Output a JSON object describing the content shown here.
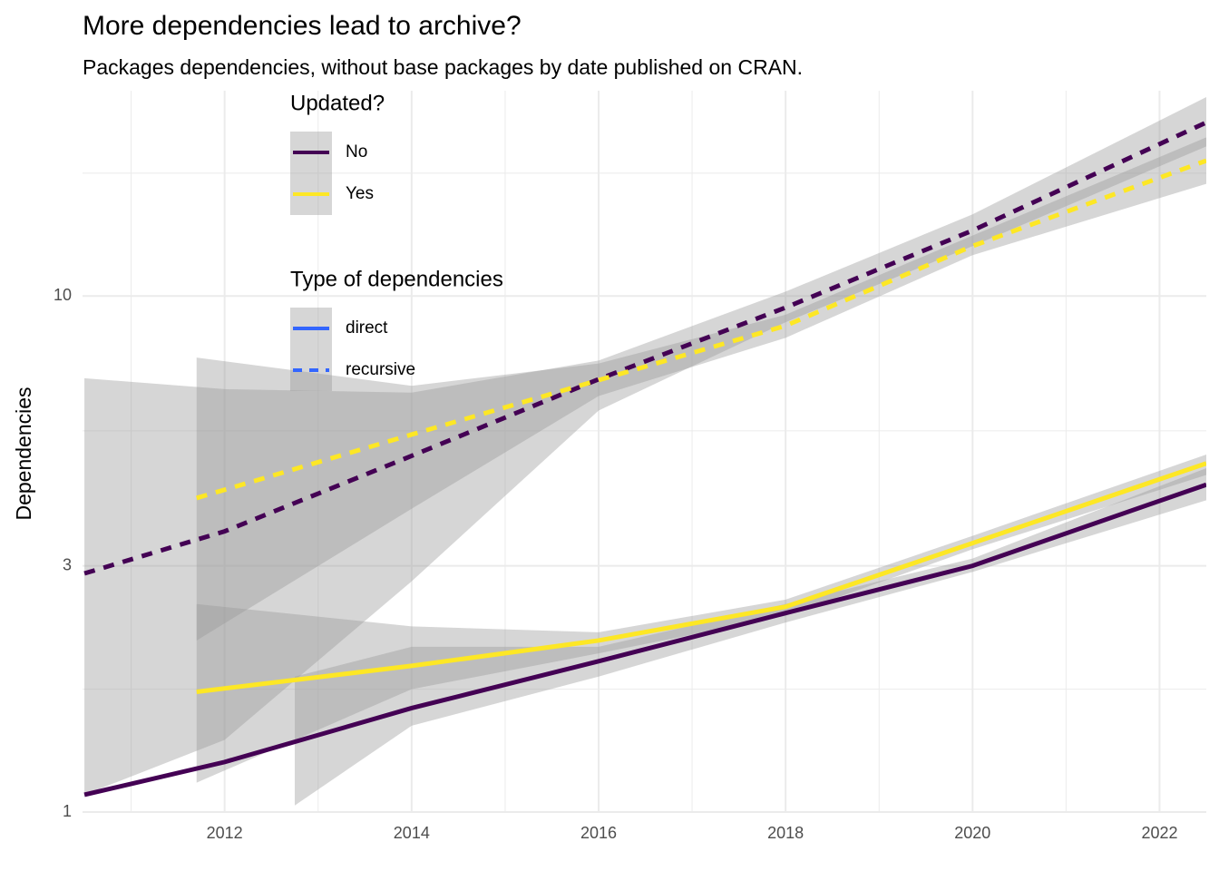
{
  "chart_data": {
    "type": "line",
    "title": "More dependencies lead to archive?",
    "subtitle": "Packages dependencies, without base packages by date published on CRAN.",
    "y_label": "Dependencies",
    "log_y": true,
    "grid": true,
    "xlim": [
      2010.48,
      2022.5
    ],
    "xticks": [
      2012,
      2014,
      2016,
      2018,
      2020,
      2022
    ],
    "x_minor_grid": [
      2011,
      2013,
      2015,
      2017,
      2019,
      2021
    ],
    "ylim": [
      1,
      25
    ],
    "yticks": [
      1,
      3,
      10
    ],
    "y_minor_grid": [
      1.73,
      5.48,
      17.3
    ],
    "band_color": "#999999",
    "legends": [
      {
        "title": "Updated?",
        "entries": [
          {
            "label": "No",
            "color": "#440154"
          },
          {
            "label": "Yes",
            "color": "#fde725"
          }
        ]
      },
      {
        "title": "Type of dependencies",
        "entries": [
          {
            "label": "direct",
            "color": "#3366ff",
            "dash": "solid"
          },
          {
            "label": "recursive",
            "color": "#3366ff",
            "dash": "dashed"
          }
        ]
      }
    ],
    "series": [
      {
        "color": "#440154",
        "dash": "dashed",
        "x": [
          2010.5,
          2012,
          2014,
          2016,
          2018,
          2020,
          2022.5
        ],
        "values": [
          2.9,
          3.5,
          4.9,
          6.9,
          9.5,
          13.4,
          21.7
        ],
        "band": {
          "x": [
            2010.5,
            2012,
            2014,
            2016,
            2018,
            2020,
            2022.5
          ],
          "lower": [
            1.08,
            1.38,
            2.8,
            6.0,
            8.9,
            12.5,
            19.5
          ],
          "upper": [
            6.93,
            6.6,
            6.5,
            7.5,
            10.2,
            14.4,
            24.3
          ]
        }
      },
      {
        "color": "#fde725",
        "dash": "dashed",
        "x": [
          2011.7,
          2014,
          2016,
          2018,
          2020,
          2022.5
        ],
        "values": [
          4.06,
          5.39,
          6.87,
          8.76,
          12.5,
          18.3
        ],
        "band": {
          "x": [
            2011.7,
            2014,
            2016,
            2018,
            2020,
            2022.5
          ],
          "lower": [
            2.15,
            3.87,
            6.4,
            8.3,
            12.0,
            16.5
          ],
          "upper": [
            7.6,
            6.7,
            7.4,
            9.2,
            13.1,
            20.3
          ]
        }
      },
      {
        "color": "#440154",
        "dash": "solid",
        "x": [
          2010.5,
          2012,
          2014,
          2016,
          2018,
          2020,
          2022.5
        ],
        "values": [
          1.08,
          1.25,
          1.59,
          1.96,
          2.43,
          3.0,
          4.31
        ],
        "band": {
          "x": [
            2012.75,
            2014,
            2016,
            2018,
            2020,
            2022.5
          ],
          "lower": [
            1.03,
            1.47,
            1.83,
            2.33,
            2.92,
            4.02
          ],
          "upper": [
            1.83,
            2.09,
            2.09,
            2.53,
            3.1,
            4.64
          ]
        }
      },
      {
        "color": "#fde725",
        "dash": "solid",
        "x": [
          2011.7,
          2014,
          2016,
          2018,
          2020,
          2022.5
        ],
        "values": [
          1.71,
          1.92,
          2.15,
          2.5,
          3.32,
          4.74
        ],
        "band": {
          "x": [
            2011.7,
            2014,
            2016,
            2018,
            2020,
            2022.5
          ],
          "lower": [
            1.14,
            1.73,
            2.03,
            2.4,
            3.23,
            4.5
          ],
          "upper": [
            2.53,
            2.29,
            2.23,
            2.58,
            3.43,
            4.93
          ]
        }
      }
    ]
  }
}
